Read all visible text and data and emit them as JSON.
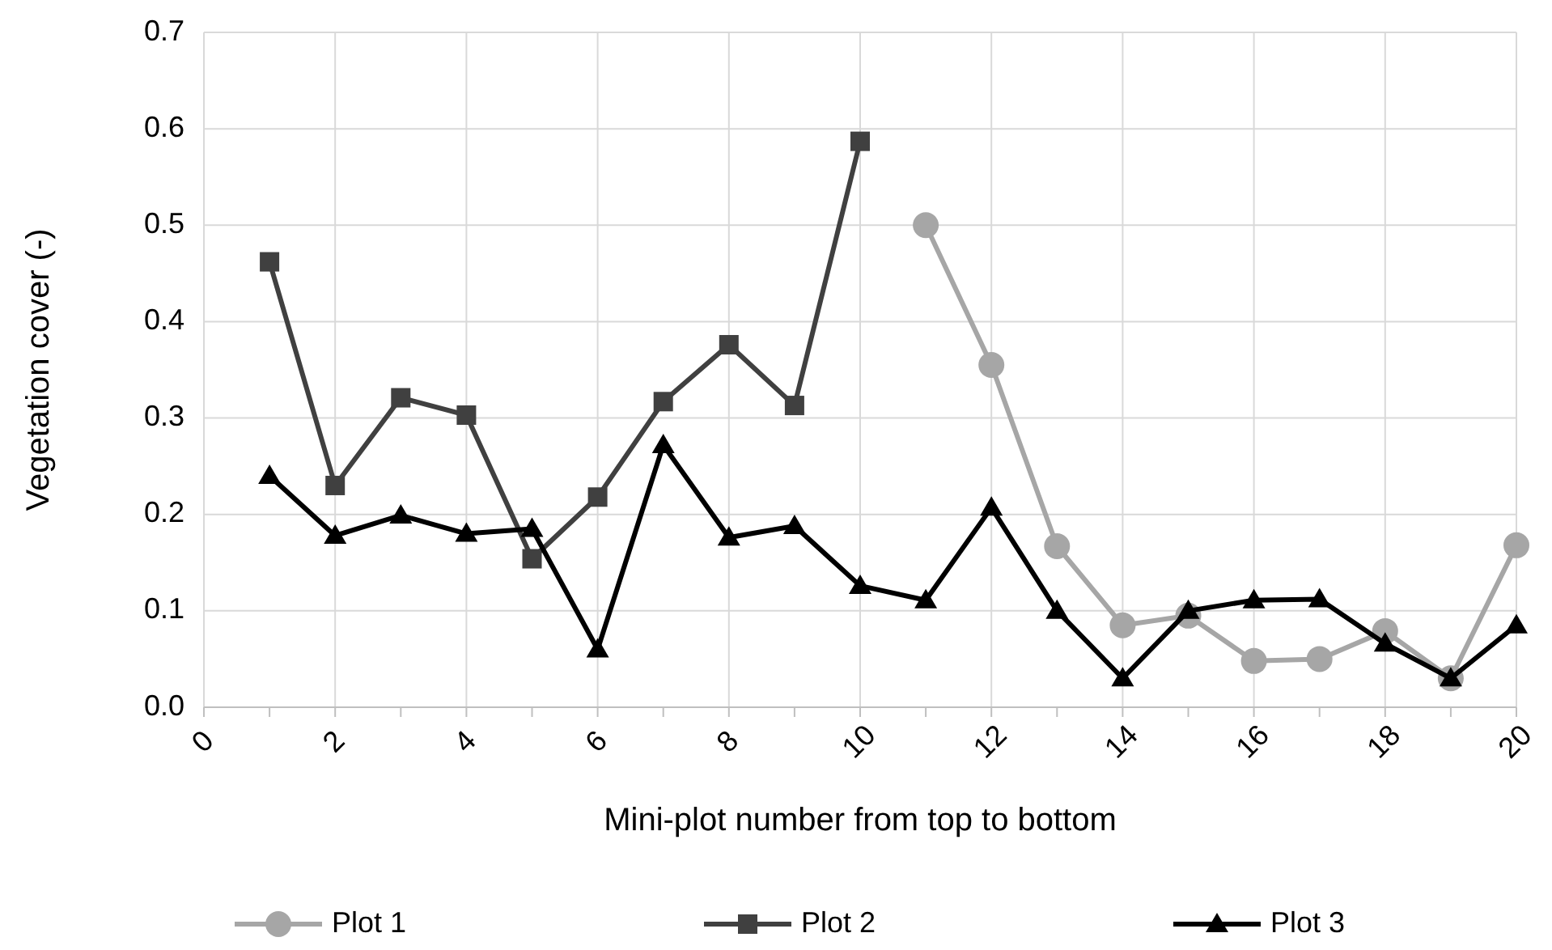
{
  "chart_data": {
    "type": "line",
    "xlabel": "Mini-plot number from top to bottom",
    "ylabel": "Vegetation cover (-)",
    "x": [
      1,
      2,
      3,
      4,
      5,
      6,
      7,
      8,
      9,
      10,
      11,
      12,
      13,
      14,
      15,
      16,
      17,
      18,
      19,
      20
    ],
    "series": [
      {
        "name": "Plot 1",
        "color": "#a6a6a6",
        "marker": "circle",
        "values": [
          null,
          null,
          null,
          null,
          null,
          null,
          null,
          null,
          null,
          null,
          0.5,
          0.355,
          0.167,
          0.085,
          0.095,
          0.048,
          0.05,
          0.079,
          0.03,
          0.168
        ]
      },
      {
        "name": "Plot 2",
        "color": "#404040",
        "marker": "square",
        "values": [
          0.462,
          0.23,
          0.321,
          0.303,
          0.154,
          0.218,
          0.317,
          0.376,
          0.313,
          0.587,
          null,
          null,
          null,
          null,
          null,
          null,
          null,
          null,
          null,
          null
        ]
      },
      {
        "name": "Plot 3",
        "color": "#000000",
        "marker": "triangle",
        "values": [
          0.24,
          0.178,
          0.199,
          0.18,
          0.185,
          0.06,
          0.272,
          0.176,
          0.188,
          0.126,
          0.111,
          0.207,
          0.1,
          0.03,
          0.1,
          0.111,
          0.112,
          0.066,
          0.03,
          0.085
        ]
      }
    ],
    "xlim": [
      0,
      20
    ],
    "xticks": [
      0,
      {
        "value": 1,
        "label": null
      },
      2,
      {
        "value": 3,
        "label": null
      },
      4,
      {
        "value": 5,
        "label": null
      },
      6,
      {
        "value": 7,
        "label": null
      },
      8,
      {
        "value": 9,
        "label": null
      },
      10,
      {
        "value": 11,
        "label": null
      },
      12,
      {
        "value": 13,
        "label": null
      },
      14,
      {
        "value": 15,
        "label": null
      },
      16,
      {
        "value": 17,
        "label": null
      },
      18,
      {
        "value": 19,
        "label": null
      },
      20
    ],
    "ylim": [
      0,
      0.7
    ],
    "yticks": [
      {
        "value": 0,
        "label": "0.0"
      },
      {
        "value": 0.1,
        "label": "0.1"
      },
      {
        "value": 0.2,
        "label": "0.2"
      },
      {
        "value": 0.3,
        "label": "0.3"
      },
      {
        "value": 0.4,
        "label": "0.4"
      },
      {
        "value": 0.5,
        "label": "0.5"
      },
      {
        "value": 0.6,
        "label": "0.6"
      },
      {
        "value": 0.7,
        "label": "0.7"
      }
    ],
    "grid": true,
    "legend": "bottom",
    "line_style": "solid"
  }
}
